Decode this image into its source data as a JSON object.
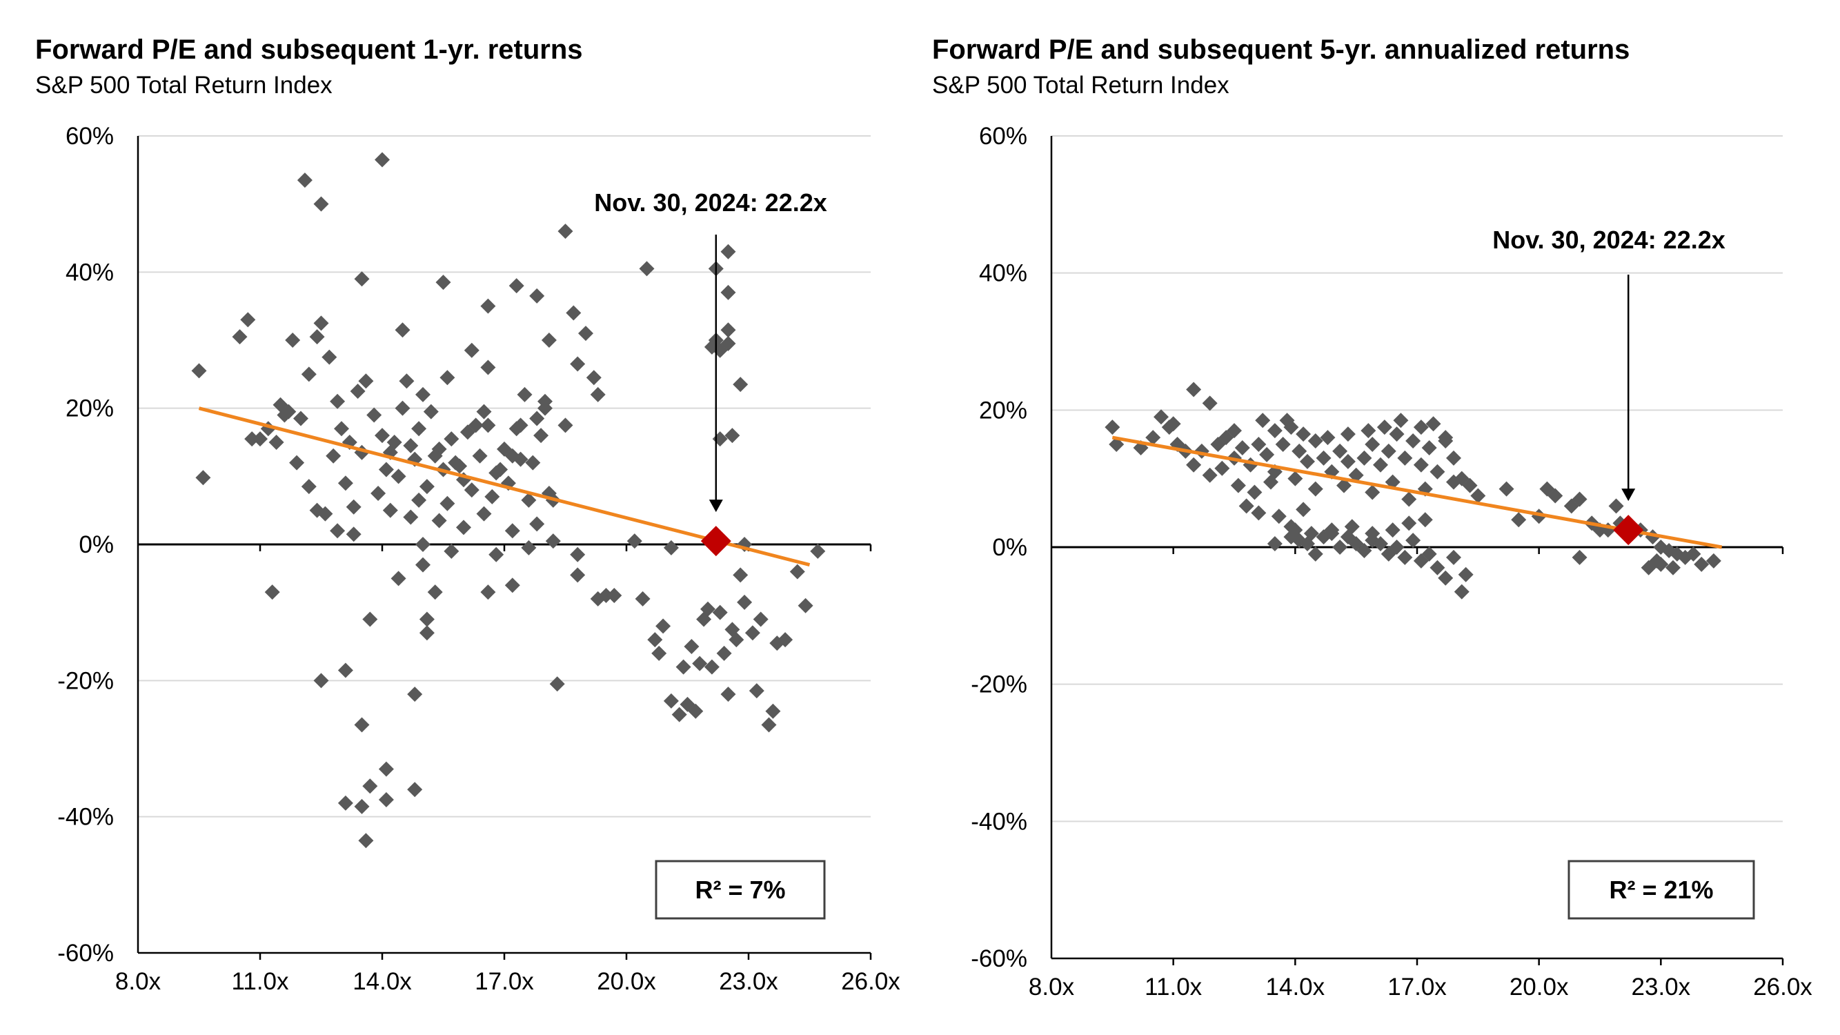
{
  "chart_data": [
    {
      "type": "scatter",
      "title": "Forward P/E and subsequent 1-yr. returns",
      "subtitle": "S&P 500 Total Return Index",
      "xlim": [
        8,
        26
      ],
      "ylim": [
        -60,
        60
      ],
      "x_ticks": [
        "8.0x",
        "11.0x",
        "14.0x",
        "17.0x",
        "20.0x",
        "23.0x",
        "26.0x"
      ],
      "y_ticks": [
        "60%",
        "40%",
        "20%",
        "0%",
        "-20%",
        "-40%",
        "-60%"
      ],
      "grid": "horizontal",
      "annotation": "Nov. 30, 2024:  22.2x",
      "r2_label": "R²  = 7%",
      "highlight": {
        "x": 22.2,
        "y": 0.5
      },
      "trendline": [
        [
          9.5,
          20
        ],
        [
          24.5,
          -3
        ]
      ],
      "colors": {
        "points": "#595959",
        "trend": "#F0851E",
        "highlight": "#C00000"
      },
      "points": [
        [
          9.5,
          25.5
        ],
        [
          9.6,
          9.8
        ],
        [
          10.5,
          30.5
        ],
        [
          10.7,
          33
        ],
        [
          10.8,
          15.5
        ],
        [
          11,
          15.5
        ],
        [
          11.2,
          17
        ],
        [
          11.5,
          20.5
        ],
        [
          11.7,
          19.5
        ],
        [
          11.8,
          30
        ],
        [
          12,
          18.5
        ],
        [
          12.2,
          25
        ],
        [
          12.4,
          30.5
        ],
        [
          12.5,
          32.5
        ],
        [
          12.7,
          27.5
        ],
        [
          12.9,
          21
        ],
        [
          13,
          17
        ],
        [
          13.2,
          15
        ],
        [
          13.4,
          22.5
        ],
        [
          13.6,
          24
        ],
        [
          13.8,
          19
        ],
        [
          14,
          16
        ],
        [
          14.2,
          13.5
        ],
        [
          14.3,
          15
        ],
        [
          14.5,
          20
        ],
        [
          14.6,
          24
        ],
        [
          14.7,
          14.5
        ],
        [
          14.9,
          17
        ],
        [
          15,
          22
        ],
        [
          15.2,
          19.5
        ],
        [
          15.4,
          14
        ],
        [
          15.5,
          11
        ],
        [
          15.6,
          24.5
        ],
        [
          15.7,
          15.5
        ],
        [
          15.8,
          12
        ],
        [
          16,
          9.5
        ],
        [
          16.1,
          16.5
        ],
        [
          16.3,
          17.5
        ],
        [
          16.5,
          19.5
        ],
        [
          16.6,
          26
        ],
        [
          16.8,
          10.5
        ],
        [
          17,
          14
        ],
        [
          17.2,
          13
        ],
        [
          17.3,
          17
        ],
        [
          17.5,
          22
        ],
        [
          17.7,
          12
        ],
        [
          17.8,
          18.5
        ],
        [
          18,
          20
        ],
        [
          11.4,
          15
        ],
        [
          12.8,
          13
        ],
        [
          13.5,
          13.5
        ],
        [
          14.1,
          11
        ],
        [
          14.8,
          12.5
        ],
        [
          15.3,
          13
        ],
        [
          15.9,
          11.5
        ],
        [
          16.4,
          13
        ],
        [
          16.9,
          11
        ],
        [
          17.4,
          12.5
        ],
        [
          17.9,
          16
        ],
        [
          13.1,
          9
        ],
        [
          13.9,
          7.5
        ],
        [
          14.4,
          10
        ],
        [
          15.1,
          8.5
        ],
        [
          15.6,
          6
        ],
        [
          16.2,
          8
        ],
        [
          16.7,
          7
        ],
        [
          17.1,
          9
        ],
        [
          17.6,
          6.5
        ],
        [
          18.1,
          7.5
        ],
        [
          13.3,
          5.5
        ],
        [
          14.7,
          4
        ],
        [
          15.4,
          3.5
        ],
        [
          16,
          2.5
        ],
        [
          16.5,
          4.5
        ],
        [
          17.2,
          2
        ],
        [
          17.8,
          3
        ],
        [
          12.2,
          8.5
        ],
        [
          12.4,
          5
        ],
        [
          12.6,
          4.5
        ],
        [
          12.9,
          2
        ],
        [
          13.3,
          1.5
        ],
        [
          14.2,
          5
        ],
        [
          15,
          0
        ],
        [
          15.7,
          -1
        ],
        [
          16.8,
          -1.5
        ],
        [
          17.6,
          -0.5
        ],
        [
          18.2,
          0.5
        ],
        [
          11.9,
          12
        ],
        [
          11.6,
          19
        ],
        [
          14.9,
          6.5
        ],
        [
          16.6,
          17.5
        ],
        [
          17.4,
          17.5
        ],
        [
          12.1,
          53.5
        ],
        [
          12.5,
          50
        ],
        [
          14,
          56.5
        ],
        [
          13.5,
          39
        ],
        [
          14.5,
          31.5
        ],
        [
          15.5,
          38.5
        ],
        [
          16.2,
          28.5
        ],
        [
          16.6,
          35
        ],
        [
          17.3,
          38
        ],
        [
          17.8,
          36.5
        ],
        [
          18.1,
          30
        ],
        [
          18.5,
          46
        ],
        [
          18.7,
          34
        ],
        [
          19,
          31
        ],
        [
          19.3,
          22
        ],
        [
          18.8,
          26.5
        ],
        [
          19.2,
          24.5
        ],
        [
          18.5,
          17.5
        ],
        [
          18,
          21
        ],
        [
          18.2,
          6.5
        ],
        [
          11.3,
          -7
        ],
        [
          12.5,
          -20
        ],
        [
          13.1,
          -18.5
        ],
        [
          13.5,
          -26.5
        ],
        [
          13.1,
          -38
        ],
        [
          13.5,
          -38.5
        ],
        [
          13.7,
          -35.5
        ],
        [
          14.1,
          -33
        ],
        [
          14.1,
          -37.5
        ],
        [
          13.6,
          -43.5
        ],
        [
          14.8,
          -36
        ],
        [
          14.8,
          -22
        ],
        [
          13.7,
          -11
        ],
        [
          14.4,
          -5
        ],
        [
          15.1,
          -11
        ],
        [
          15.1,
          -13
        ],
        [
          15.3,
          -7
        ],
        [
          15,
          -3
        ],
        [
          16.6,
          -7
        ],
        [
          17.2,
          -6
        ],
        [
          18.3,
          -20.5
        ],
        [
          18.8,
          -1.5
        ],
        [
          18.8,
          -4.5
        ],
        [
          19.5,
          -7.5
        ],
        [
          19.3,
          -8
        ],
        [
          19.7,
          -7.5
        ],
        [
          20.2,
          0.5
        ],
        [
          20.4,
          -8
        ],
        [
          20.7,
          -14
        ],
        [
          20.8,
          -16
        ],
        [
          20.9,
          -12
        ],
        [
          21.1,
          -23
        ],
        [
          21.3,
          -25
        ],
        [
          21.4,
          -18
        ],
        [
          21.5,
          -23.5
        ],
        [
          21.6,
          -15
        ],
        [
          21.7,
          -24.5
        ],
        [
          21.8,
          -17.5
        ],
        [
          21.9,
          -11
        ],
        [
          22,
          -9.5
        ],
        [
          22.1,
          -18
        ],
        [
          22.3,
          -10
        ],
        [
          22.4,
          -16
        ],
        [
          22.5,
          -22
        ],
        [
          22.6,
          -12.5
        ],
        [
          22.7,
          -14
        ],
        [
          22.8,
          -4.5
        ],
        [
          21.1,
          -0.5
        ],
        [
          22.9,
          -8.5
        ],
        [
          23.1,
          -13
        ],
        [
          23.2,
          -21.5
        ],
        [
          23.3,
          -11
        ],
        [
          23.5,
          -26.5
        ],
        [
          23.6,
          -24.5
        ],
        [
          23.7,
          -14.5
        ],
        [
          23.9,
          -14
        ],
        [
          24.2,
          -4
        ],
        [
          24.4,
          -9
        ],
        [
          24.7,
          -1
        ],
        [
          20.5,
          40.5
        ],
        [
          22.2,
          40.5
        ],
        [
          22.5,
          43
        ],
        [
          22.5,
          37
        ],
        [
          22.5,
          31.5
        ],
        [
          22.5,
          29.5
        ],
        [
          22.3,
          28.5
        ],
        [
          22.2,
          30
        ],
        [
          22.1,
          29
        ],
        [
          22.3,
          15.5
        ],
        [
          22.6,
          16
        ],
        [
          22.8,
          23.5
        ],
        [
          22.9,
          0
        ]
      ]
    },
    {
      "type": "scatter",
      "title": "Forward P/E and subsequent 5-yr. annualized returns",
      "subtitle": "S&P 500 Total Return Index",
      "xlim": [
        8,
        26
      ],
      "ylim": [
        -60,
        60
      ],
      "x_ticks": [
        "8.0x",
        "11.0x",
        "14.0x",
        "17.0x",
        "20.0x",
        "23.0x",
        "26.0x"
      ],
      "y_ticks": [
        "60%",
        "40%",
        "20%",
        "0%",
        "-20%",
        "-40%",
        "-60%"
      ],
      "grid": "horizontal",
      "annotation": "Nov. 30, 2024:  22.2x",
      "r2_label": "R²  = 21%",
      "highlight": {
        "x": 22.2,
        "y": 2.5
      },
      "trendline": [
        [
          9.5,
          16
        ],
        [
          24.5,
          0
        ]
      ],
      "colors": {
        "points": "#595959",
        "trend": "#F0851E",
        "highlight": "#C00000"
      },
      "points": [
        [
          9.5,
          17.5
        ],
        [
          9.6,
          15
        ],
        [
          10.2,
          14.5
        ],
        [
          10.5,
          16
        ],
        [
          10.7,
          19
        ],
        [
          10.9,
          17.5
        ],
        [
          11.1,
          15
        ],
        [
          11.3,
          14
        ],
        [
          11.5,
          12
        ],
        [
          11.7,
          14
        ],
        [
          11.9,
          10.5
        ],
        [
          12.1,
          15
        ],
        [
          12.3,
          16
        ],
        [
          12.5,
          13
        ],
        [
          12.7,
          14.5
        ],
        [
          12.9,
          12
        ],
        [
          13.1,
          15
        ],
        [
          13.3,
          13.5
        ],
        [
          13.5,
          11
        ],
        [
          13.7,
          15
        ],
        [
          13.9,
          17.5
        ],
        [
          14.1,
          14
        ],
        [
          14.3,
          12.5
        ],
        [
          14.5,
          15.5
        ],
        [
          14.7,
          13
        ],
        [
          14.9,
          11
        ],
        [
          15.1,
          14
        ],
        [
          15.3,
          12.5
        ],
        [
          15.5,
          10.5
        ],
        [
          15.7,
          13
        ],
        [
          15.9,
          15
        ],
        [
          16.1,
          12
        ],
        [
          16.3,
          14
        ],
        [
          16.5,
          16.5
        ],
        [
          16.7,
          13
        ],
        [
          16.9,
          15.5
        ],
        [
          17.1,
          12
        ],
        [
          17.3,
          14.5
        ],
        [
          17.5,
          11
        ],
        [
          17.7,
          16
        ],
        [
          17.9,
          13
        ],
        [
          18.1,
          10
        ],
        [
          11.5,
          23
        ],
        [
          11.9,
          21
        ],
        [
          11,
          18
        ],
        [
          12.5,
          17
        ],
        [
          13.2,
          18.5
        ],
        [
          13.5,
          17
        ],
        [
          13.8,
          18.5
        ],
        [
          14.2,
          16.5
        ],
        [
          14.8,
          16
        ],
        [
          15.3,
          16.5
        ],
        [
          15.8,
          17
        ],
        [
          16.2,
          17.5
        ],
        [
          16.6,
          18.5
        ],
        [
          17.1,
          17.5
        ],
        [
          17.4,
          18
        ],
        [
          17.7,
          15.5
        ],
        [
          12.2,
          11.5
        ],
        [
          12.6,
          9
        ],
        [
          13,
          8
        ],
        [
          13.4,
          9.5
        ],
        [
          14,
          10
        ],
        [
          14.5,
          8.5
        ],
        [
          15.2,
          9
        ],
        [
          15.9,
          8
        ],
        [
          16.4,
          9.5
        ],
        [
          16.8,
          7
        ],
        [
          17.2,
          8.5
        ],
        [
          17.9,
          9.5
        ],
        [
          18.3,
          9
        ],
        [
          12.8,
          6
        ],
        [
          13.1,
          5
        ],
        [
          13.6,
          4.5
        ],
        [
          13.9,
          3
        ],
        [
          14.2,
          5.5
        ],
        [
          13.9,
          1.5
        ],
        [
          14.1,
          1
        ],
        [
          14.3,
          0.5
        ],
        [
          14.5,
          -1
        ],
        [
          14.7,
          1.5
        ],
        [
          14.9,
          2
        ],
        [
          15.1,
          0
        ],
        [
          15.3,
          1.5
        ],
        [
          15.5,
          0.5
        ],
        [
          15.7,
          -0.5
        ],
        [
          15.9,
          1
        ],
        [
          16.1,
          0.5
        ],
        [
          16.3,
          -1
        ],
        [
          16.5,
          0
        ],
        [
          16.7,
          -1.5
        ],
        [
          16.9,
          1
        ],
        [
          17.1,
          -2
        ],
        [
          17.3,
          -1
        ],
        [
          17.5,
          -3
        ],
        [
          17.7,
          -4.5
        ],
        [
          17.9,
          -1.5
        ],
        [
          18.1,
          -6.5
        ],
        [
          18.2,
          -4
        ],
        [
          13.5,
          0.5
        ],
        [
          14,
          2.5
        ],
        [
          14.4,
          2
        ],
        [
          14.9,
          2.5
        ],
        [
          15.4,
          3
        ],
        [
          15.9,
          2
        ],
        [
          16.4,
          2.5
        ],
        [
          16.8,
          3.5
        ],
        [
          17.2,
          4
        ],
        [
          18.5,
          7.5
        ],
        [
          19.2,
          8.5
        ],
        [
          19.5,
          4
        ],
        [
          20.2,
          8.5
        ],
        [
          20.4,
          7.5
        ],
        [
          20.8,
          6
        ],
        [
          21,
          7
        ],
        [
          21.3,
          3.5
        ],
        [
          21.5,
          2.5
        ],
        [
          21.9,
          6
        ],
        [
          22,
          3.5
        ],
        [
          22.5,
          2.5
        ],
        [
          22.8,
          1.5
        ],
        [
          23,
          0
        ],
        [
          23.2,
          -0.5
        ],
        [
          23.4,
          -1
        ],
        [
          23.6,
          -1.5
        ],
        [
          23.8,
          -1
        ],
        [
          24,
          -2.5
        ],
        [
          24.3,
          -2
        ],
        [
          23,
          -2.5
        ],
        [
          23.3,
          -3
        ],
        [
          22.7,
          -3
        ],
        [
          22.9,
          -2
        ],
        [
          21,
          -1.5
        ],
        [
          20,
          4.5
        ],
        [
          22.3,
          2
        ],
        [
          21.7,
          2.5
        ]
      ]
    }
  ]
}
